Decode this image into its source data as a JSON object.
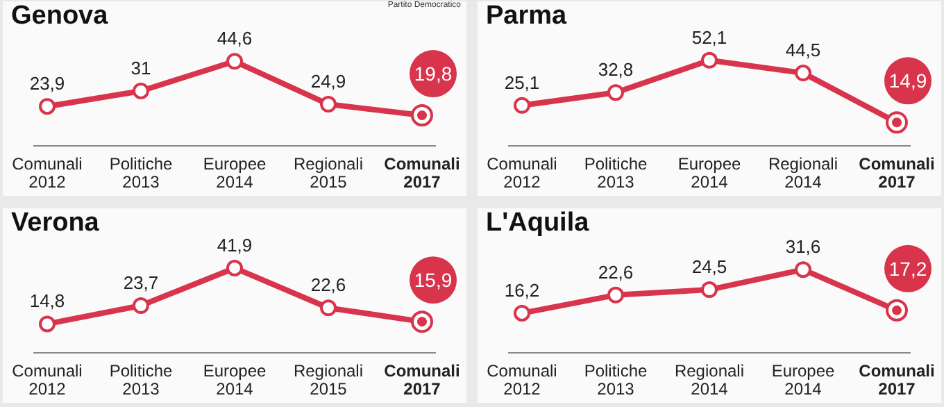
{
  "chart_data": [
    {
      "type": "line",
      "title": "Genova",
      "annotations": [
        "Partito Democratico"
      ],
      "categories": [
        "Comunali\n2012",
        "Politiche\n2013",
        "Europee\n2014",
        "Regionali\n2015",
        "Comunali\n2017"
      ],
      "marker": "circle",
      "legend": false,
      "grid": false,
      "series": [
        {
          "color": "#d8344c",
          "values": [
            23.9,
            31,
            44.6,
            24.9,
            19.8
          ],
          "value_labels": [
            "23,9",
            "31",
            "44,6",
            "24,9",
            "19,8"
          ]
        }
      ]
    },
    {
      "type": "line",
      "title": "Parma",
      "categories": [
        "Comunali\n2012",
        "Politiche\n2013",
        "Europee\n2014",
        "Regionali\n2014",
        "Comunali\n2017"
      ],
      "marker": "circle",
      "legend": false,
      "grid": false,
      "series": [
        {
          "color": "#d8344c",
          "values": [
            25.1,
            32.8,
            52.1,
            44.5,
            14.9
          ],
          "value_labels": [
            "25,1",
            "32,8",
            "52,1",
            "44,5",
            "14,9"
          ]
        }
      ]
    },
    {
      "type": "line",
      "title": "Verona",
      "categories": [
        "Comunali\n2012",
        "Politiche\n2013",
        "Europee\n2014",
        "Regionali\n2015",
        "Comunali\n2017"
      ],
      "marker": "circle",
      "legend": false,
      "grid": false,
      "series": [
        {
          "color": "#d8344c",
          "values": [
            14.8,
            23.7,
            41.9,
            22.6,
            15.9
          ],
          "value_labels": [
            "14,8",
            "23,7",
            "41,9",
            "22,6",
            "15,9"
          ]
        }
      ]
    },
    {
      "type": "line",
      "title": "L'Aquila",
      "categories": [
        "Comunali\n2012",
        "Politiche\n2013",
        "Regionali\n2014",
        "Europee\n2014",
        "Comunali\n2017"
      ],
      "marker": "circle",
      "legend": false,
      "grid": false,
      "series": [
        {
          "color": "#d8344c",
          "values": [
            16.2,
            22.6,
            24.5,
            31.6,
            17.2
          ],
          "value_labels": [
            "16,2",
            "22,6",
            "24,5",
            "31,6",
            "17,2"
          ]
        }
      ]
    }
  ]
}
